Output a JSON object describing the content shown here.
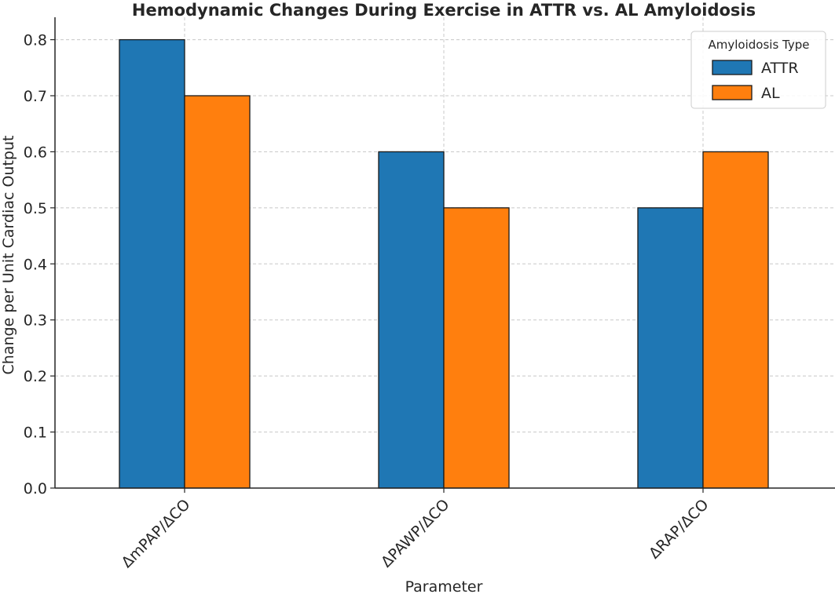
{
  "chart_data": {
    "type": "bar",
    "title": "Hemodynamic Changes During Exercise in ATTR vs. AL Amyloidosis",
    "xlabel": "Parameter",
    "ylabel": "Change per Unit Cardiac Output",
    "categories": [
      "ΔmPAP/ΔCO",
      "ΔPAWP/ΔCO",
      "ΔRAP/ΔCO"
    ],
    "series": [
      {
        "name": "ATTR",
        "values": [
          0.8,
          0.6,
          0.5
        ],
        "color": "#1f77b4"
      },
      {
        "name": "AL",
        "values": [
          0.7,
          0.5,
          0.6
        ],
        "color": "#ff7f0e"
      }
    ],
    "ylim": [
      0,
      0.84
    ],
    "yticks": [
      "0.0",
      "0.1",
      "0.2",
      "0.3",
      "0.4",
      "0.5",
      "0.6",
      "0.7",
      "0.8"
    ],
    "grid": true,
    "legend": {
      "title": "Amyloidosis Type",
      "placement": "top-right"
    }
  }
}
